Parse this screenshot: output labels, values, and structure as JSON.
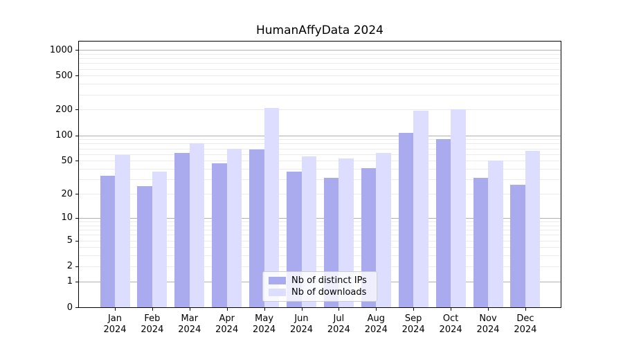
{
  "title": "HumanAffyData 2024",
  "legend": {
    "items": [
      {
        "label": "Nb of distinct IPs",
        "color": "#aaaaee"
      },
      {
        "label": "Nb of downloads",
        "color": "#ddddff"
      }
    ]
  },
  "chart_data": {
    "type": "bar",
    "title": "HumanAffyData 2024",
    "categories": [
      "Jan 2024",
      "Feb 2024",
      "Mar 2024",
      "Apr 2024",
      "May 2024",
      "Jun 2024",
      "Jul 2024",
      "Aug 2024",
      "Sep 2024",
      "Oct 2024",
      "Nov 2024",
      "Dec 2024"
    ],
    "series": [
      {
        "name": "Nb of distinct IPs",
        "color": "#aaaaee",
        "values": [
          33,
          25,
          62,
          47,
          68,
          37,
          31,
          41,
          107,
          91,
          31,
          26
        ]
      },
      {
        "name": "Nb of downloads",
        "color": "#ddddff",
        "values": [
          58,
          37,
          81,
          70,
          210,
          56,
          53,
          62,
          196,
          200,
          50,
          66
        ]
      }
    ],
    "yscale": "log1p",
    "yticks": [
      0,
      1,
      2,
      5,
      10,
      20,
      50,
      100,
      200,
      500,
      1000
    ],
    "ylim": [
      0,
      1250
    ],
    "grid": "horizontal major+minor",
    "legend_position": "inside bottom-center",
    "xlabel": "",
    "ylabel": ""
  }
}
